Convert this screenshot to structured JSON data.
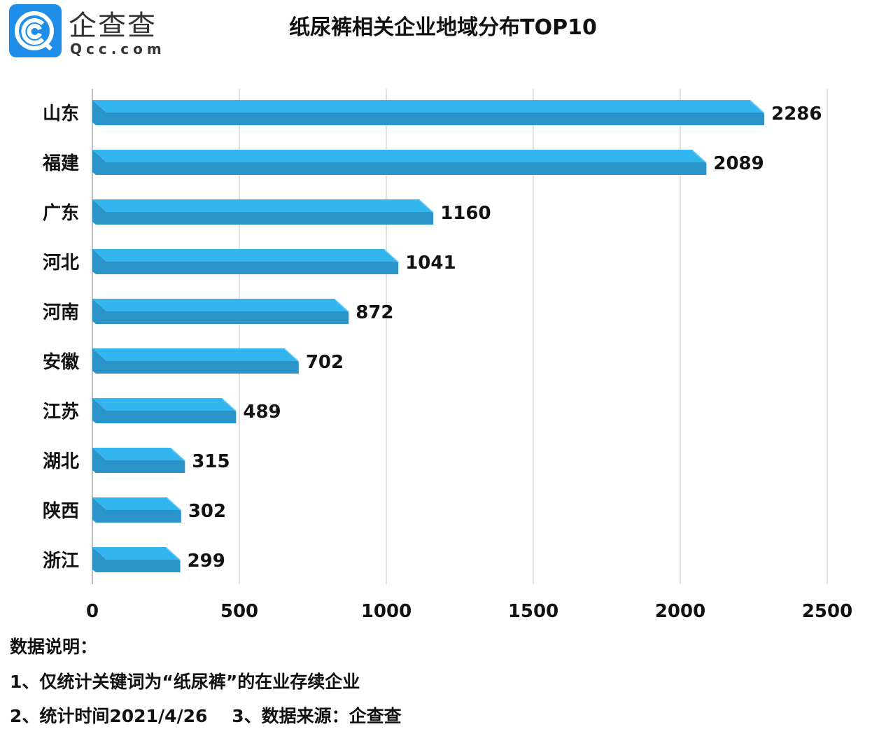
{
  "brand": {
    "name_cn": "企查查",
    "name_en": "Qcc.com"
  },
  "chart_data": {
    "type": "bar",
    "orientation": "horizontal",
    "title": "纸尿裤相关企业地域分布TOP10",
    "categories": [
      "山东",
      "福建",
      "广东",
      "河北",
      "河南",
      "安徽",
      "江苏",
      "湖北",
      "陕西",
      "浙江"
    ],
    "values": [
      2286,
      2089,
      1160,
      1041,
      872,
      702,
      489,
      315,
      302,
      299
    ],
    "xlim": [
      0,
      2500
    ],
    "xticks": [
      0,
      500,
      1000,
      1500,
      2000,
      2500
    ],
    "grid": true,
    "colors": {
      "top": "#33b6ef",
      "bottom": "#2a93c8",
      "end": "#6ccaf2"
    }
  },
  "notes": {
    "heading": "数据说明：",
    "line1": "1、仅统计关键词为“纸尿裤”的在业存续企业",
    "line2": "2、统计时间2021/4/26    3、数据来源：企查查"
  }
}
